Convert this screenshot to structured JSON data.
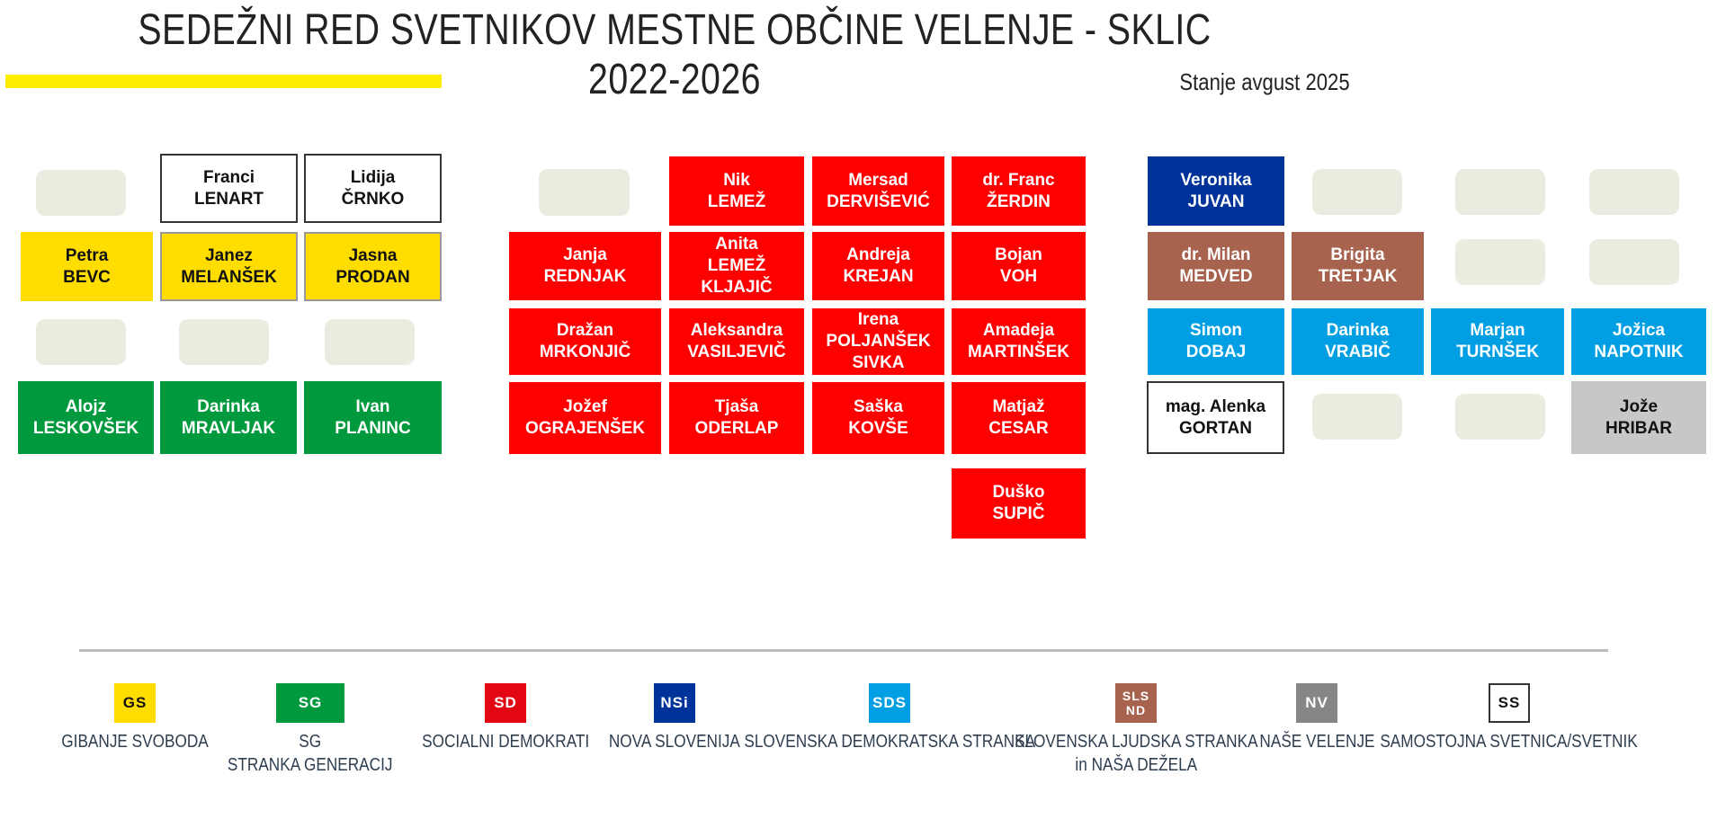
{
  "title": "SEDEŽNI RED SVETNIKOV MESTNE OBČINE VELENJE - SKLIC 2022-2026",
  "subtitle": "Stanje avgust 2025",
  "colors": {
    "gs": "#ffdd00",
    "sg": "#00993d",
    "sd": "#ff0000",
    "nsi": "#00339a",
    "sds": "#009fe3",
    "sls": "#a8634f",
    "nv": "#868686",
    "ss": "#ffffff",
    "accent": "#ffed00"
  },
  "seats": {
    "lenart": {
      "first": "Franci",
      "last": "LENART"
    },
    "crnko": {
      "first": "Lidija",
      "last": "ČRNKO"
    },
    "bevc": {
      "first": "Petra",
      "last": "BEVC"
    },
    "melansek": {
      "first": "Janez",
      "last": "MELANŠEK"
    },
    "prodan": {
      "first": "Jasna",
      "last": "PRODAN"
    },
    "leskovsek": {
      "first": "Alojz",
      "last": "LESKOVŠEK"
    },
    "mravljak": {
      "first": "Darinka",
      "last": "MRAVLJAK"
    },
    "planinc": {
      "first": "Ivan",
      "last": "PLANINC"
    },
    "lemez_nik": {
      "first": "Nik",
      "last": "LEMEŽ"
    },
    "dervisevic": {
      "first": "Mersad",
      "last": "DERVIŠEVIĆ"
    },
    "zerdin": {
      "first": "dr. Franc",
      "last": "ŽERDIN"
    },
    "rednjak": {
      "first": "Janja",
      "last": "REDNJAK"
    },
    "kljajic": {
      "first": "Anita",
      "last": "LEMEŽ",
      "last2": "KLJAJIČ"
    },
    "krejan": {
      "first": "Andreja",
      "last": "KREJAN"
    },
    "voh": {
      "first": "Bojan",
      "last": "VOH"
    },
    "mrkonjic": {
      "first": "Dražan",
      "last": "MRKONJIČ"
    },
    "vasiljevic": {
      "first": "Aleksandra",
      "last": "VASILJEVIČ"
    },
    "sivka": {
      "first": "Irena",
      "last": "POLJANŠEK",
      "last2": "SIVKA"
    },
    "martinsek": {
      "first": "Amadeja",
      "last": "MARTINŠEK"
    },
    "ograjensek": {
      "first": "Jožef",
      "last": "OGRAJENŠEK"
    },
    "oderlap": {
      "first": "Tjaša",
      "last": "ODERLAP"
    },
    "kovse": {
      "first": "Saška",
      "last": "KOVŠE"
    },
    "cesar": {
      "first": "Matjaž",
      "last": "CESAR"
    },
    "supic": {
      "first": "Duško",
      "last": "SUPIČ"
    },
    "juvan": {
      "first": "Veronika",
      "last": "JUVAN"
    },
    "medved": {
      "first": "dr. Milan",
      "last": "MEDVED"
    },
    "tretjak": {
      "first": "Brigita",
      "last": "TRETJAK"
    },
    "dobaj": {
      "first": "Simon",
      "last": "DOBAJ"
    },
    "vrabic": {
      "first": "Darinka",
      "last": "VRABIČ"
    },
    "tursek": {
      "first": "Marjan",
      "last": "TURNŠEK"
    },
    "napotnik": {
      "first": "Jožica",
      "last": "NAPOTNIK"
    },
    "gortan": {
      "first": "mag. Alenka",
      "last": "GORTAN"
    },
    "hribar": {
      "first": "Jože",
      "last": "HRIBAR"
    }
  },
  "legend": [
    {
      "abbr": "GS",
      "label": "GIBANJE SVOBODA"
    },
    {
      "abbr": "SG",
      "label": "SG",
      "label2": "STRANKA GENERACIJ"
    },
    {
      "abbr": "SD",
      "label": "SOCIALNI DEMOKRATI"
    },
    {
      "abbr": "NSi",
      "label": "NOVA SLOVENIJA"
    },
    {
      "abbr": "SDS",
      "label": "SLOVENSKA DEMOKRATSKA STRANKA"
    },
    {
      "abbr": "SLS",
      "abbr2": "ND",
      "label": "SLOVENSKA LJUDSKA STRANKA",
      "label2": "in NAŠA DEŽELA"
    },
    {
      "abbr": "NV",
      "label": "NAŠE VELENJE"
    },
    {
      "abbr": "SS",
      "label": "SAMOSTOJNA SVETNICA/SVETNIK"
    }
  ]
}
